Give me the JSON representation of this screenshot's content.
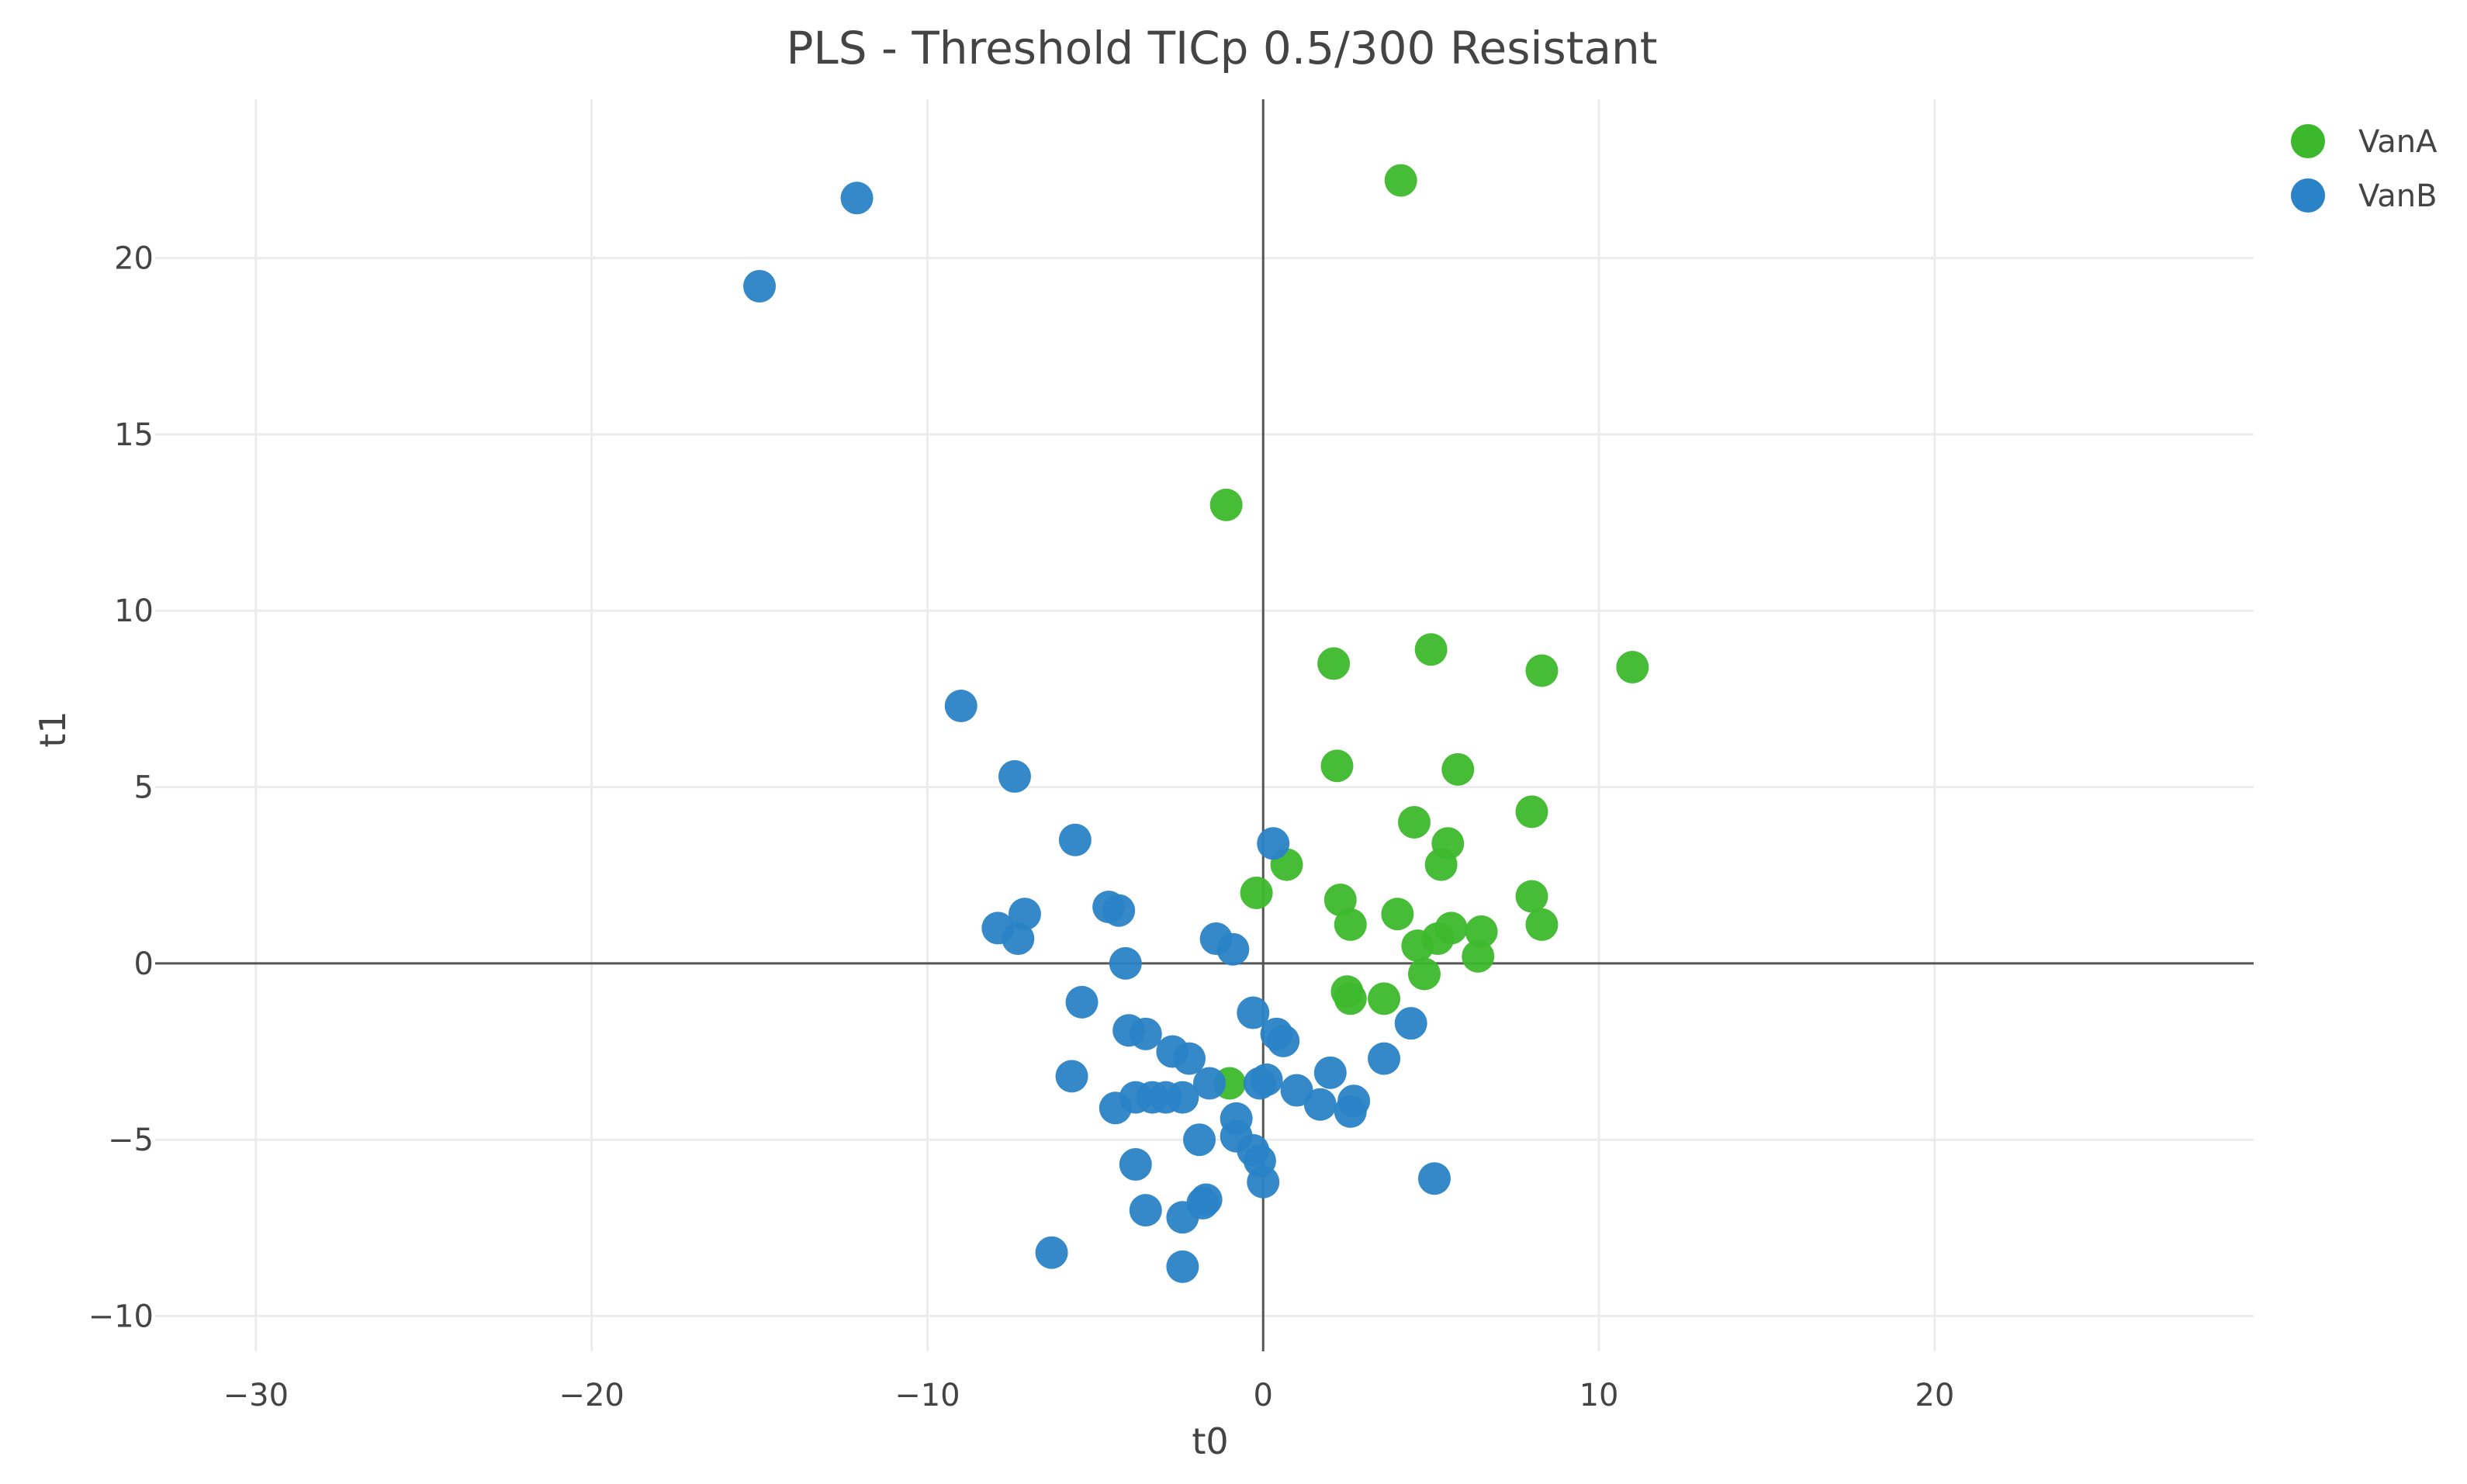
{
  "chart_data": {
    "type": "scatter",
    "title": "PLS - Threshold TICp 0.5/300 Resistant",
    "xlabel": "t0",
    "ylabel": "t1",
    "xlim": [
      -33,
      29.5
    ],
    "ylim": [
      -11,
      24.5
    ],
    "xticks": [
      -30,
      -20,
      -10,
      0,
      10,
      20
    ],
    "yticks": [
      -10,
      -5,
      0,
      5,
      10,
      15,
      20
    ],
    "grid": true,
    "legend_position": "top-right",
    "series": [
      {
        "name": "VanA",
        "color": "#3cb82c",
        "points": [
          [
            4.1,
            22.2
          ],
          [
            -1.1,
            13.0
          ],
          [
            5.0,
            8.9
          ],
          [
            2.1,
            8.5
          ],
          [
            8.3,
            8.3
          ],
          [
            11.0,
            8.4
          ],
          [
            2.2,
            5.6
          ],
          [
            5.8,
            5.5
          ],
          [
            8.0,
            4.3
          ],
          [
            4.5,
            4.0
          ],
          [
            5.5,
            3.4
          ],
          [
            5.3,
            2.8
          ],
          [
            0.7,
            2.8
          ],
          [
            -0.2,
            2.0
          ],
          [
            2.3,
            1.8
          ],
          [
            8.0,
            1.9
          ],
          [
            4.0,
            1.4
          ],
          [
            2.6,
            1.1
          ],
          [
            8.3,
            1.1
          ],
          [
            5.6,
            1.0
          ],
          [
            6.5,
            0.9
          ],
          [
            5.2,
            0.7
          ],
          [
            4.6,
            0.5
          ],
          [
            6.4,
            0.2
          ],
          [
            4.8,
            -0.3
          ],
          [
            2.5,
            -0.8
          ],
          [
            2.6,
            -1.0
          ],
          [
            3.6,
            -1.0
          ],
          [
            -1.0,
            -3.4
          ]
        ]
      },
      {
        "name": "VanB",
        "color": "#2a83c6",
        "points": [
          [
            -12.1,
            21.7
          ],
          [
            -15.0,
            19.2
          ],
          [
            -9.0,
            7.3
          ],
          [
            -7.4,
            5.3
          ],
          [
            -5.6,
            3.5
          ],
          [
            -4.6,
            1.6
          ],
          [
            -4.3,
            1.5
          ],
          [
            -7.1,
            1.4
          ],
          [
            -7.9,
            1.0
          ],
          [
            -7.3,
            0.7
          ],
          [
            -1.4,
            0.7
          ],
          [
            -0.9,
            0.4
          ],
          [
            -4.1,
            0.0
          ],
          [
            -5.4,
            -1.1
          ],
          [
            -0.3,
            -1.4
          ],
          [
            0.4,
            -2.0
          ],
          [
            0.6,
            -2.2
          ],
          [
            -4.0,
            -1.9
          ],
          [
            -3.5,
            -2.0
          ],
          [
            -2.7,
            -2.5
          ],
          [
            -2.2,
            -2.7
          ],
          [
            -1.6,
            -3.4
          ],
          [
            -0.1,
            -3.4
          ],
          [
            0.1,
            -3.3
          ],
          [
            2.0,
            -3.1
          ],
          [
            1.0,
            -3.6
          ],
          [
            -5.7,
            -3.2
          ],
          [
            -3.8,
            -3.8
          ],
          [
            -3.3,
            -3.8
          ],
          [
            -2.9,
            -3.8
          ],
          [
            -2.4,
            -3.8
          ],
          [
            -4.4,
            -4.1
          ],
          [
            1.7,
            -4.0
          ],
          [
            2.6,
            -4.2
          ],
          [
            2.7,
            -3.9
          ],
          [
            -0.8,
            -4.4
          ],
          [
            -0.8,
            -4.9
          ],
          [
            -1.9,
            -5.0
          ],
          [
            -0.3,
            -5.3
          ],
          [
            -0.1,
            -5.6
          ],
          [
            -3.8,
            -5.7
          ],
          [
            0.0,
            -6.2
          ],
          [
            5.1,
            -6.1
          ],
          [
            -1.7,
            -6.7
          ],
          [
            -1.8,
            -6.8
          ],
          [
            -2.4,
            -7.2
          ],
          [
            -3.5,
            -7.0
          ],
          [
            -6.3,
            -8.2
          ],
          [
            -2.4,
            -8.6
          ],
          [
            3.6,
            -2.7
          ],
          [
            4.4,
            -1.7
          ],
          [
            0.3,
            3.4
          ]
        ]
      }
    ]
  }
}
